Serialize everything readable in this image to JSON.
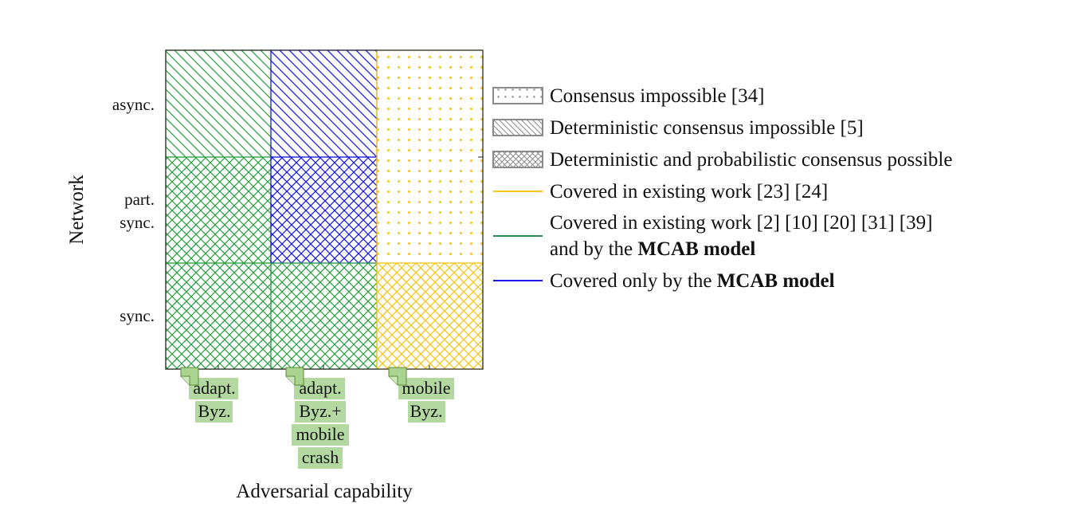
{
  "axes": {
    "y_label": "Network",
    "x_label": "Adversarial capability"
  },
  "y_ticks": [
    {
      "line1": "async.",
      "line2": ""
    },
    {
      "line1": "part.",
      "line2": "sync."
    },
    {
      "line1": "sync.",
      "line2": ""
    }
  ],
  "x_ticks": [
    {
      "lines": [
        "adapt.",
        "Byz."
      ]
    },
    {
      "lines": [
        "adapt.",
        "Byz.+",
        "mobile",
        "crash"
      ]
    },
    {
      "lines": [
        "mobile",
        "Byz."
      ]
    }
  ],
  "cells": [
    {
      "column": "adapt. Byz.",
      "network": "async.",
      "pattern": "diagonal",
      "color": "green"
    },
    {
      "column": "adapt. Byz.",
      "network": "part. sync.",
      "pattern": "crosshatch",
      "color": "green"
    },
    {
      "column": "adapt. Byz.",
      "network": "sync.",
      "pattern": "crosshatch",
      "color": "green"
    },
    {
      "column": "adapt. Byz.+ mobile crash",
      "network": "async.",
      "pattern": "diagonal",
      "color": "blue"
    },
    {
      "column": "adapt. Byz.+ mobile crash",
      "network": "part. sync.",
      "pattern": "crosshatch",
      "color": "blue"
    },
    {
      "column": "adapt. Byz.+ mobile crash",
      "network": "sync.",
      "pattern": "crosshatch",
      "color": "green"
    },
    {
      "column": "mobile Byz.",
      "network": "async.",
      "pattern": "dots",
      "color": "yellow"
    },
    {
      "column": "mobile Byz.",
      "network": "part. sync.",
      "pattern": "dots",
      "color": "yellow"
    },
    {
      "column": "mobile Byz.",
      "network": "sync.",
      "pattern": "crosshatch",
      "color": "yellow"
    }
  ],
  "colors": {
    "green": "#2ea043",
    "blue": "#1a1ae6",
    "yellow": "#f5c518",
    "gray": "#8a8a8a",
    "note_fill": "#b3d9a0",
    "note_stroke": "#5a8f3c"
  },
  "legend": {
    "patterns": [
      {
        "kind": "dots",
        "text": "Consensus impossible [34]"
      },
      {
        "kind": "diagonal",
        "text": "Deterministic consensus impossible [5]"
      },
      {
        "kind": "crosshatch",
        "text": "Deterministic and probabilistic consensus possible"
      }
    ],
    "lines": [
      {
        "color": "yellow",
        "text": "Covered in existing work [23] [24]",
        "text2": "",
        "bold": ""
      },
      {
        "color": "green",
        "text": "Covered in existing work [2] [10] [20] [31] [39]",
        "text2": "and by the ",
        "bold": "MCAB model"
      },
      {
        "color": "blue",
        "text": "Covered only by the ",
        "text2": "",
        "bold": "MCAB model"
      }
    ]
  }
}
